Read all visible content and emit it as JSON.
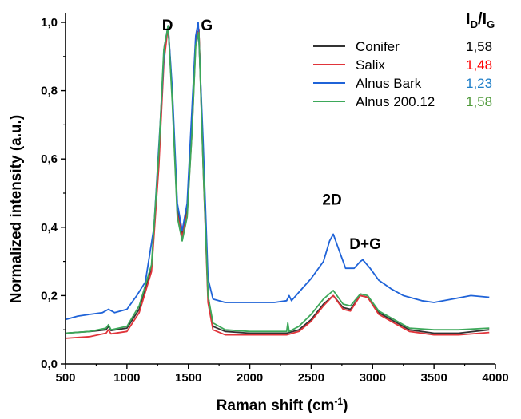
{
  "chart_data": {
    "type": "line",
    "xlabel": "Raman shift (cm",
    "xlabel_sup": "-1",
    "xlabel_tail": ")",
    "ylabel": "Normalized intensity (a.u.)",
    "xlim": [
      500,
      4000
    ],
    "ylim": [
      0,
      1.0
    ],
    "x_ticks": [
      "500",
      "1000",
      "1500",
      "2000",
      "2500",
      "3000",
      "3500",
      "4000"
    ],
    "y_ticks": [
      "0,0",
      "0,2",
      "0,4",
      "0,6",
      "0,8",
      "1,0"
    ],
    "x_tick_values": [
      500,
      1000,
      1500,
      2000,
      2500,
      3000,
      3500,
      4000
    ],
    "y_tick_values": [
      0,
      0.2,
      0.4,
      0.6,
      0.8,
      1.0
    ],
    "annotations": [
      {
        "text": "D",
        "x": 1330,
        "y": 1.0
      },
      {
        "text": "G",
        "x": 1650,
        "y": 1.0
      },
      {
        "text": "2D",
        "x": 2670,
        "y": 0.49
      },
      {
        "text": "D+G",
        "x": 2940,
        "y": 0.36
      }
    ],
    "ratio_header": {
      "main": "I",
      "sub1": "D",
      "slash": "/I",
      "sub2": "G"
    },
    "legend_position": "top-right",
    "series": [
      {
        "name": "Conifer",
        "color": "#333333",
        "ratio": "1,58",
        "ratio_color": "#000000",
        "points": [
          [
            500,
            0.09
          ],
          [
            700,
            0.095
          ],
          [
            830,
            0.1
          ],
          [
            850,
            0.11
          ],
          [
            870,
            0.098
          ],
          [
            1000,
            0.105
          ],
          [
            1100,
            0.16
          ],
          [
            1200,
            0.28
          ],
          [
            1260,
            0.6
          ],
          [
            1300,
            0.9
          ],
          [
            1335,
            0.99
          ],
          [
            1370,
            0.78
          ],
          [
            1410,
            0.45
          ],
          [
            1450,
            0.38
          ],
          [
            1490,
            0.45
          ],
          [
            1530,
            0.7
          ],
          [
            1560,
            0.95
          ],
          [
            1585,
            0.98
          ],
          [
            1620,
            0.6
          ],
          [
            1660,
            0.2
          ],
          [
            1700,
            0.11
          ],
          [
            1800,
            0.095
          ],
          [
            2000,
            0.09
          ],
          [
            2300,
            0.09
          ],
          [
            2400,
            0.1
          ],
          [
            2500,
            0.13
          ],
          [
            2600,
            0.175
          ],
          [
            2680,
            0.2
          ],
          [
            2760,
            0.165
          ],
          [
            2820,
            0.16
          ],
          [
            2900,
            0.2
          ],
          [
            2960,
            0.195
          ],
          [
            3050,
            0.15
          ],
          [
            3200,
            0.12
          ],
          [
            3300,
            0.1
          ],
          [
            3500,
            0.09
          ],
          [
            3700,
            0.09
          ],
          [
            3950,
            0.1
          ]
        ]
      },
      {
        "name": "Salix",
        "color": "#e0343a",
        "ratio": "1,48",
        "ratio_color": "#ff0000",
        "points": [
          [
            500,
            0.075
          ],
          [
            700,
            0.08
          ],
          [
            830,
            0.09
          ],
          [
            850,
            0.1
          ],
          [
            870,
            0.088
          ],
          [
            1000,
            0.095
          ],
          [
            1100,
            0.15
          ],
          [
            1200,
            0.27
          ],
          [
            1260,
            0.58
          ],
          [
            1300,
            0.88
          ],
          [
            1335,
            0.99
          ],
          [
            1370,
            0.78
          ],
          [
            1410,
            0.44
          ],
          [
            1450,
            0.37
          ],
          [
            1490,
            0.44
          ],
          [
            1530,
            0.68
          ],
          [
            1560,
            0.94
          ],
          [
            1585,
            0.98
          ],
          [
            1620,
            0.58
          ],
          [
            1660,
            0.18
          ],
          [
            1700,
            0.1
          ],
          [
            1800,
            0.085
          ],
          [
            2000,
            0.085
          ],
          [
            2300,
            0.085
          ],
          [
            2400,
            0.095
          ],
          [
            2500,
            0.125
          ],
          [
            2600,
            0.17
          ],
          [
            2680,
            0.2
          ],
          [
            2760,
            0.16
          ],
          [
            2820,
            0.155
          ],
          [
            2900,
            0.2
          ],
          [
            2960,
            0.195
          ],
          [
            3050,
            0.145
          ],
          [
            3200,
            0.115
          ],
          [
            3300,
            0.095
          ],
          [
            3500,
            0.085
          ],
          [
            3700,
            0.085
          ],
          [
            3950,
            0.092
          ]
        ]
      },
      {
        "name": "Alnus Bark",
        "color": "#1f63d8",
        "ratio": "1,23",
        "ratio_color": "#1e7ec8",
        "points": [
          [
            500,
            0.13
          ],
          [
            600,
            0.14
          ],
          [
            700,
            0.145
          ],
          [
            800,
            0.15
          ],
          [
            850,
            0.16
          ],
          [
            900,
            0.15
          ],
          [
            1000,
            0.16
          ],
          [
            1080,
            0.2
          ],
          [
            1150,
            0.24
          ],
          [
            1220,
            0.4
          ],
          [
            1270,
            0.7
          ],
          [
            1305,
            0.93
          ],
          [
            1335,
            0.99
          ],
          [
            1370,
            0.8
          ],
          [
            1410,
            0.47
          ],
          [
            1450,
            0.39
          ],
          [
            1490,
            0.47
          ],
          [
            1530,
            0.75
          ],
          [
            1560,
            0.96
          ],
          [
            1580,
            1.0
          ],
          [
            1620,
            0.65
          ],
          [
            1660,
            0.25
          ],
          [
            1700,
            0.19
          ],
          [
            1800,
            0.18
          ],
          [
            2000,
            0.18
          ],
          [
            2200,
            0.18
          ],
          [
            2300,
            0.185
          ],
          [
            2320,
            0.2
          ],
          [
            2340,
            0.185
          ],
          [
            2400,
            0.21
          ],
          [
            2500,
            0.25
          ],
          [
            2600,
            0.3
          ],
          [
            2650,
            0.36
          ],
          [
            2680,
            0.38
          ],
          [
            2720,
            0.34
          ],
          [
            2780,
            0.28
          ],
          [
            2850,
            0.28
          ],
          [
            2900,
            0.3
          ],
          [
            2920,
            0.305
          ],
          [
            2980,
            0.28
          ],
          [
            3050,
            0.245
          ],
          [
            3150,
            0.22
          ],
          [
            3250,
            0.2
          ],
          [
            3400,
            0.185
          ],
          [
            3500,
            0.18
          ],
          [
            3650,
            0.19
          ],
          [
            3800,
            0.2
          ],
          [
            3950,
            0.195
          ]
        ]
      },
      {
        "name": "Alnus 200.12",
        "color": "#3da85a",
        "ratio": "1,58",
        "ratio_color": "#4f9a3a",
        "points": [
          [
            500,
            0.09
          ],
          [
            700,
            0.095
          ],
          [
            830,
            0.105
          ],
          [
            850,
            0.115
          ],
          [
            870,
            0.1
          ],
          [
            1000,
            0.11
          ],
          [
            1100,
            0.17
          ],
          [
            1200,
            0.29
          ],
          [
            1260,
            0.62
          ],
          [
            1300,
            0.92
          ],
          [
            1335,
            0.99
          ],
          [
            1370,
            0.76
          ],
          [
            1410,
            0.43
          ],
          [
            1450,
            0.36
          ],
          [
            1490,
            0.43
          ],
          [
            1530,
            0.68
          ],
          [
            1560,
            0.93
          ],
          [
            1585,
            0.97
          ],
          [
            1620,
            0.58
          ],
          [
            1660,
            0.2
          ],
          [
            1700,
            0.12
          ],
          [
            1800,
            0.1
          ],
          [
            2000,
            0.095
          ],
          [
            2300,
            0.095
          ],
          [
            2310,
            0.12
          ],
          [
            2320,
            0.095
          ],
          [
            2400,
            0.11
          ],
          [
            2500,
            0.145
          ],
          [
            2600,
            0.19
          ],
          [
            2680,
            0.215
          ],
          [
            2760,
            0.175
          ],
          [
            2820,
            0.17
          ],
          [
            2900,
            0.205
          ],
          [
            2960,
            0.2
          ],
          [
            3050,
            0.155
          ],
          [
            3200,
            0.125
          ],
          [
            3300,
            0.105
          ],
          [
            3500,
            0.1
          ],
          [
            3700,
            0.1
          ],
          [
            3950,
            0.105
          ]
        ]
      }
    ]
  }
}
